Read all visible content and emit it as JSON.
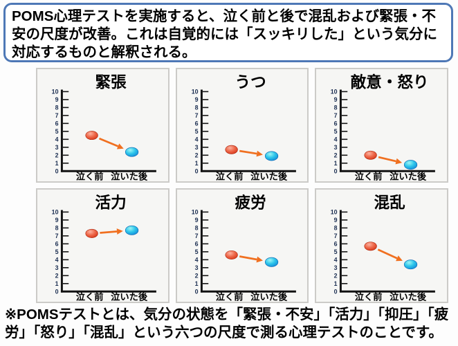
{
  "header": {
    "text": " POMS心理テストを実施すると、泣く前と後で混乱および緊張・不安の尺度が改善。これは自覚的には「スッキリした」という気分に対応するものと解釈される。"
  },
  "footer": {
    "text": "※POMSテストとは、気分の状態を「緊張・不安」「活力」「抑圧」「疲労」「怒り」「混乱」という六つの尺度で測る心理テストのことです。"
  },
  "axis": {
    "min": 0,
    "max": 10,
    "tick_step": 1,
    "tick_labels": [
      "0",
      "1",
      "2",
      "3",
      "4",
      "5",
      "6",
      "7",
      "8",
      "9",
      "10"
    ],
    "x_labels": [
      "泣く前",
      "泣いた後"
    ]
  },
  "colors": {
    "box_border": "#4e78b6",
    "panel_bg": "#f6f6f4",
    "panel_border": "#cccbc8",
    "axis": "#111111",
    "tick_label": "#1c2f52",
    "title": "#000000",
    "x_label": "#000000",
    "arrow": "#f07020",
    "before_marker": {
      "hi": "#fcb2a0",
      "mid": "#ee6a4c",
      "lo": "#d22a0c",
      "edge": "#a82008"
    },
    "after_marker": {
      "hi": "#9ff4f4",
      "mid": "#2ec6ea",
      "lo": "#0d7cd4",
      "edge": "#0a63b0"
    }
  },
  "chart_data": [
    {
      "type": "scatter",
      "title": "緊張",
      "categories": [
        "泣く前",
        "泣いた後"
      ],
      "values": [
        4.5,
        2.4
      ],
      "ylim": [
        0,
        10
      ],
      "grid": false,
      "legend": "none"
    },
    {
      "type": "scatter",
      "title": "うつ",
      "categories": [
        "泣く前",
        "泣いた後"
      ],
      "values": [
        2.7,
        1.9
      ],
      "ylim": [
        0,
        10
      ],
      "grid": false,
      "legend": "none"
    },
    {
      "type": "scatter",
      "title": "敵意・怒り",
      "categories": [
        "泣く前",
        "泣いた後"
      ],
      "values": [
        2.0,
        0.8
      ],
      "ylim": [
        0,
        10
      ],
      "grid": false,
      "legend": "none"
    },
    {
      "type": "scatter",
      "title": "活力",
      "categories": [
        "泣く前",
        "泣いた後"
      ],
      "values": [
        7.3,
        7.7
      ],
      "ylim": [
        0,
        10
      ],
      "grid": false,
      "legend": "none"
    },
    {
      "type": "scatter",
      "title": "疲労",
      "categories": [
        "泣く前",
        "泣いた後"
      ],
      "values": [
        4.6,
        3.7
      ],
      "ylim": [
        0,
        10
      ],
      "grid": false,
      "legend": "none"
    },
    {
      "type": "scatter",
      "title": "混乱",
      "categories": [
        "泣く前",
        "泣いた後"
      ],
      "values": [
        5.7,
        3.4
      ],
      "ylim": [
        0,
        10
      ],
      "grid": false,
      "legend": "none"
    }
  ]
}
